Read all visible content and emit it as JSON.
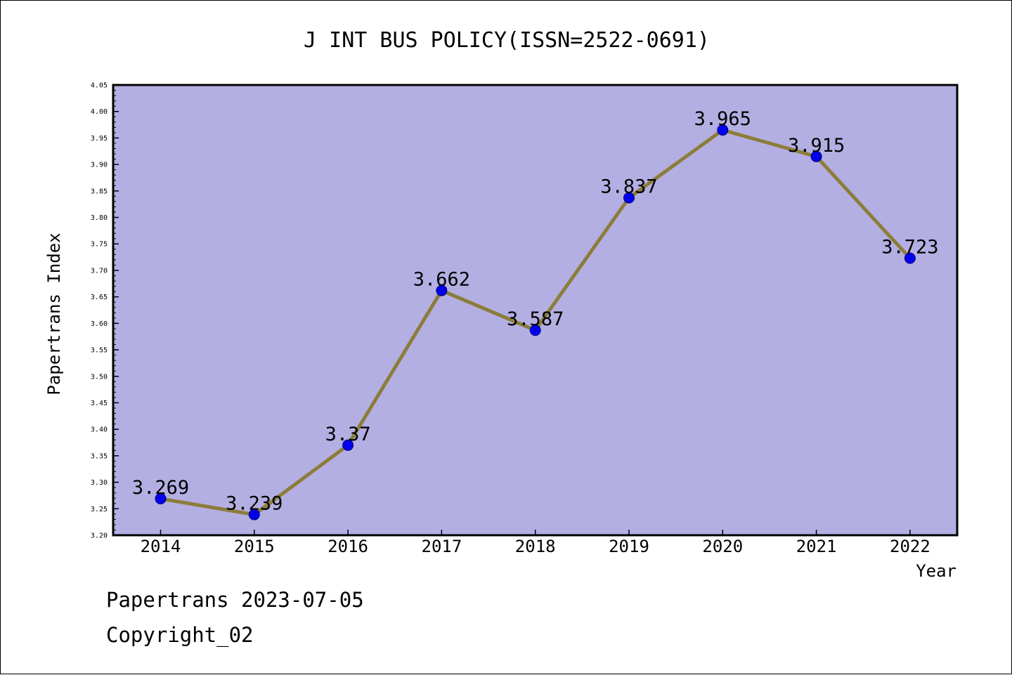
{
  "chart_data": {
    "type": "line",
    "title": "J INT BUS POLICY(ISSN=2522-0691)",
    "xlabel": "Year",
    "ylabel": "Papertrans Index",
    "categories": [
      "2014",
      "2015",
      "2016",
      "2017",
      "2018",
      "2019",
      "2020",
      "2021",
      "2022"
    ],
    "series": [
      {
        "values": [
          3.269,
          3.239,
          3.37,
          3.662,
          3.587,
          3.837,
          3.965,
          3.915,
          3.723
        ],
        "labels": [
          "3.269",
          "3.239",
          "3.37",
          "3.662",
          "3.587",
          "3.837",
          "3.965",
          "3.915",
          "3.723"
        ]
      }
    ],
    "ylim": [
      3.2,
      4.05
    ],
    "yticks": [
      "3.20",
      "3.25",
      "3.30",
      "3.35",
      "3.40",
      "3.45",
      "3.50",
      "3.55",
      "3.60",
      "3.65",
      "3.70",
      "3.75",
      "3.80",
      "3.85",
      "3.90",
      "3.95",
      "4.00",
      "4.05"
    ],
    "grid": false,
    "colors": {
      "plot_background": "#b4afe2",
      "line": "#8b7d3a",
      "marker": "#0000ee"
    }
  },
  "footer": {
    "line1": "Papertrans 2023-07-05",
    "line2": "Copyright_02"
  }
}
